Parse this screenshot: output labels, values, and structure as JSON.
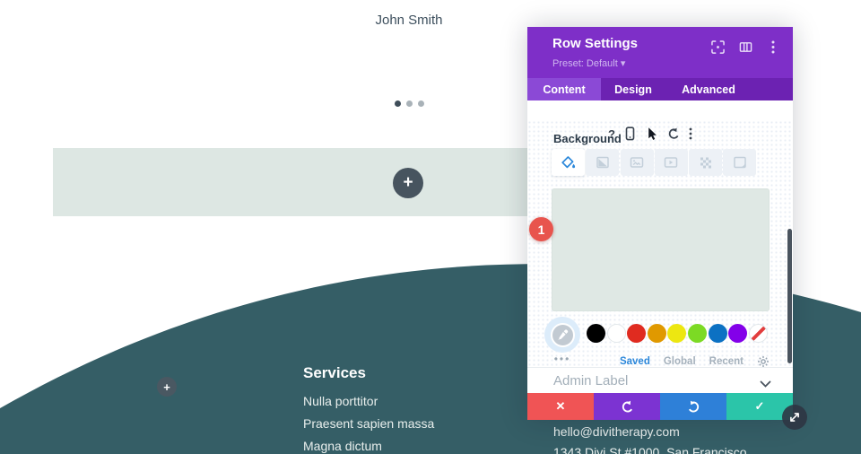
{
  "page": {
    "profile_name": "John Smith",
    "carousel": {
      "dot_count": 3,
      "active_dot": 0
    },
    "add_row_button": "+",
    "add_module_button": "+",
    "services": {
      "heading": "Services",
      "items": [
        "Nulla porttitor",
        "Praesent sapien massa",
        "Magna dictum"
      ]
    },
    "contact": {
      "email": "hello@divitherapy.com",
      "address": "1343 Divi St #1000, San Francisco"
    },
    "colors": {
      "section_teal": "#355e66",
      "row_band": "#dde7e3",
      "heading_text": "#3d4f5d"
    }
  },
  "modal": {
    "title": "Row Settings",
    "preset": "Preset: Default",
    "preset_caret": "▾",
    "tabs": [
      {
        "label": "Content",
        "active": true
      },
      {
        "label": "Design",
        "active": false
      },
      {
        "label": "Advanced",
        "active": false
      }
    ],
    "background": {
      "label": "Background",
      "help_glyph": "?",
      "badge": "1",
      "types": [
        "color",
        "gradient",
        "image",
        "video",
        "pattern",
        "mask"
      ],
      "active_type": "color",
      "preview_color": "#dfe8e4",
      "swatches": [
        "#000000",
        "#FFFFFF",
        "#E02B20",
        "#E09900",
        "#EDE711",
        "#7CDA24",
        "#0C71C3",
        "#8300E9",
        "none"
      ],
      "more_glyph": "•••",
      "palette_tabs": [
        {
          "label": "Saved",
          "active": true
        },
        {
          "label": "Global",
          "active": false
        },
        {
          "label": "Recent",
          "active": false
        }
      ]
    },
    "admin_label": "Admin Label",
    "footer": [
      {
        "name": "discard",
        "color": "#f05455",
        "glyph": "✕"
      },
      {
        "name": "undo",
        "color": "#7c33d2",
        "glyph": ""
      },
      {
        "name": "redo",
        "color": "#2e80d8",
        "glyph": ""
      },
      {
        "name": "save",
        "color": "#2bc5a9",
        "glyph": "✓"
      }
    ],
    "colors": {
      "header_purple": "#7e2fc8",
      "tabbar_purple": "#6c22b2",
      "active_tab_purple": "#8b49d6",
      "accent_blue": "#2b87da",
      "badge_red": "#e8544d",
      "scrollbar": "#4a545f"
    }
  }
}
